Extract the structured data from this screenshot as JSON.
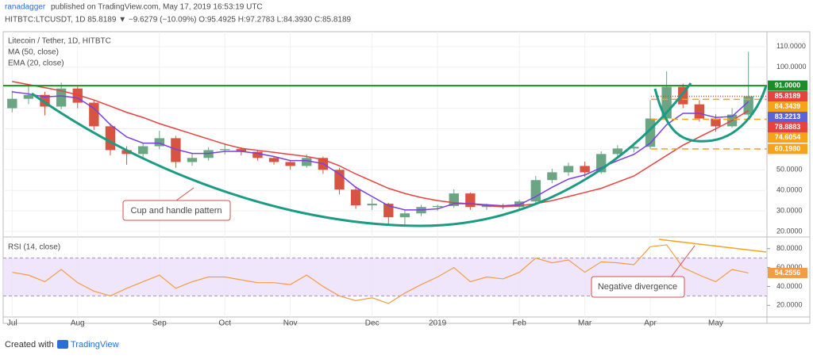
{
  "header": {
    "author": "ranadagger",
    "published": "published on TradingView.com, May 17, 2019 16:53:19 UTC",
    "symbol_line": "HITBTC:LTCUSDT, 1D 85.8189 ▼ −9.6279 (−10.09%) O:95.4925 H:97.2783 L:84.3930 C:85.8189"
  },
  "footer": {
    "prefix": "Created with",
    "brand": "TradingView"
  },
  "chart_data": [
    {
      "type": "candlestick",
      "title": "Litecoin / Tether, 1D, HITBTC",
      "categories": [
        "Jul",
        null,
        null,
        null,
        "Aug",
        null,
        null,
        null,
        null,
        "Sep",
        null,
        null,
        null,
        "Oct",
        null,
        null,
        null,
        "Nov",
        null,
        null,
        null,
        null,
        "Dec",
        null,
        null,
        null,
        "2019",
        null,
        null,
        null,
        null,
        "Feb",
        null,
        null,
        null,
        "Mar",
        null,
        null,
        null,
        "Apr",
        null,
        null,
        null,
        "May",
        null,
        null
      ],
      "open": [
        80,
        84.6,
        86.5,
        80.8,
        89.6,
        82.7,
        71.2,
        59.6,
        57.7,
        61.5,
        65.4,
        53.8,
        55.8,
        59.6,
        60.1,
        58.8,
        55.8,
        53.8,
        51.9,
        55.8,
        50,
        40.4,
        32.7,
        33.5,
        26.9,
        28.8,
        31.9,
        32.4,
        38.5,
        31.9,
        32.6,
        31.9,
        34.6,
        45,
        48.8,
        51.9,
        48.8,
        57.7,
        60.4,
        61.2,
        75,
        90.4,
        81.9,
        75,
        71.2,
        76.9
      ],
      "high": [
        88.5,
        91,
        88,
        92.5,
        90.5,
        84,
        72.5,
        61.5,
        63,
        69,
        66.5,
        58,
        61,
        63,
        61,
        59.5,
        56.5,
        54.5,
        57.5,
        56.5,
        51,
        42,
        36,
        34,
        30.5,
        33,
        33,
        40.5,
        39,
        33.5,
        33.5,
        35.5,
        47,
        50.5,
        53.5,
        54,
        59,
        62,
        63,
        84,
        98,
        92,
        84,
        77,
        80,
        107.5
      ],
      "low": [
        78,
        82,
        76.5,
        79.5,
        80,
        69.5,
        57,
        52.5,
        55.5,
        60,
        51,
        52,
        54.5,
        57.5,
        57,
        54.5,
        52.5,
        50,
        51,
        48,
        38,
        31,
        30.5,
        23.5,
        23,
        27.5,
        30,
        31.5,
        30.5,
        30.5,
        30.8,
        31,
        34,
        43.5,
        47,
        46.5,
        48,
        56,
        58.5,
        60,
        74,
        80,
        73.5,
        68.5,
        70.5,
        76
      ],
      "close": [
        84.6,
        86.5,
        80.8,
        89.6,
        82.7,
        71.2,
        59.6,
        57.7,
        61.5,
        65.4,
        53.8,
        55.8,
        59.6,
        60.1,
        58.8,
        55.8,
        53.8,
        51.9,
        55.8,
        50,
        40.4,
        32.7,
        33.5,
        26.9,
        28.8,
        31.9,
        32.4,
        38.5,
        31.9,
        32.6,
        31.9,
        34.6,
        45,
        48.8,
        51.9,
        48.8,
        57.7,
        60.4,
        61.2,
        75,
        90.4,
        81.9,
        75,
        71.2,
        76.9,
        85.8189
      ],
      "up_color": "#6ba583",
      "down_color": "#d75442",
      "series": [
        {
          "name": "MA (50, close)",
          "color": "#e8423f",
          "values": [
            93,
            91.5,
            90,
            88.5,
            86.5,
            84,
            81,
            78,
            75.5,
            72.5,
            70,
            67.5,
            65,
            62.5,
            60.5,
            59.5,
            58.5,
            57.5,
            56.5,
            55,
            52,
            48,
            44.5,
            41,
            38.5,
            36.5,
            35,
            34,
            33.5,
            32.5,
            32,
            32.5,
            33.5,
            35,
            37,
            39,
            41,
            44,
            47,
            52,
            57,
            62,
            66,
            70,
            74,
            78.8883
          ]
        },
        {
          "name": "EMA (20, close)",
          "color": "#7b3fe4",
          "values": [
            88,
            87,
            85.5,
            86,
            85,
            80,
            72,
            66,
            63,
            63,
            60,
            58,
            58,
            59,
            59,
            58,
            56.5,
            54.5,
            54.5,
            53,
            48,
            41.5,
            37,
            32.5,
            30.5,
            30.5,
            31,
            33.5,
            33.5,
            33,
            32.5,
            33,
            37,
            41.5,
            45.5,
            47.5,
            51,
            54.5,
            57.5,
            63,
            72,
            77.5,
            77.5,
            75.5,
            76,
            83.2213
          ]
        }
      ],
      "ylim": [
        17.7,
        116.5
      ],
      "yticks": [
        {
          "value": 20,
          "label": "20.0000"
        },
        {
          "value": 30,
          "label": "30.0000"
        },
        {
          "value": 40,
          "label": "40.0000"
        },
        {
          "value": 50,
          "label": "50.0000"
        },
        {
          "value": 60,
          "label": "60.0000"
        },
        {
          "value": 70,
          "label": "70.0000"
        },
        {
          "value": 80,
          "label": "80.0000"
        },
        {
          "value": 90,
          "label": "90.0000"
        },
        {
          "value": 100,
          "label": "100.0000"
        },
        {
          "value": 110,
          "label": "110.0000"
        }
      ],
      "grid": true,
      "price_labels": [
        {
          "value": 91,
          "label": "91.0000",
          "color": "#1b8c27",
          "line": "solid"
        },
        {
          "value": 85.8189,
          "label": "85.8189",
          "color": "#e8423f",
          "line": "dotted"
        },
        {
          "value": 84.3439,
          "label": "84.3439",
          "color": "#f7a21b",
          "line": "dashed"
        },
        {
          "value": 83.2213,
          "label": "83.2213",
          "color": "#5b63d6",
          "line": null
        },
        {
          "value": 78.8883,
          "label": "78.8883",
          "color": "#e8423f",
          "line": null
        },
        {
          "value": 74.6054,
          "label": "74.6054",
          "color": "#f7a21b",
          "line": "dashed"
        },
        {
          "value": 60.198,
          "label": "60.1980",
          "color": "#f7a21b",
          "line": "dashed"
        }
      ],
      "annotation": "Cup and handle pattern"
    },
    {
      "type": "line",
      "title": "RSI (14, close)",
      "color": "#f39c45",
      "band": [
        30,
        70
      ],
      "values": [
        55,
        52,
        45,
        58,
        44,
        35,
        30,
        38,
        45,
        52,
        38,
        45,
        50,
        50,
        47,
        44,
        44,
        42,
        52,
        40,
        30,
        25,
        28,
        22,
        33,
        42,
        50,
        60,
        45,
        50,
        48,
        55,
        70,
        65,
        68,
        55,
        66,
        65,
        63,
        82,
        84,
        60,
        52,
        45,
        58,
        54.2556
      ],
      "ylim": [
        7.7,
        91.5
      ],
      "yticks": [
        {
          "value": 20,
          "label": "20.0000"
        },
        {
          "value": 40,
          "label": "40.0000"
        },
        {
          "value": 60,
          "label": "60.0000"
        },
        {
          "value": 80,
          "label": "80.0000"
        }
      ],
      "last_label": {
        "value": 54.2556,
        "label": "54.2556"
      },
      "annotation": "Negative divergence"
    }
  ]
}
